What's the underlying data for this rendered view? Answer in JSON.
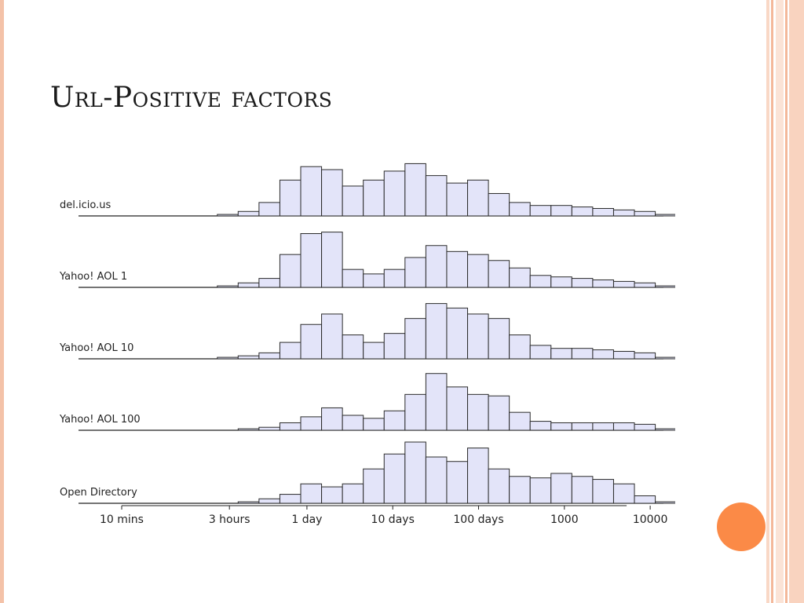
{
  "slide": {
    "title": "Url-Positive factors",
    "colors": {
      "bar_fill": "#e3e4f9",
      "bar_stroke": "#2b2b2b",
      "accent_dot": "#fb8a47",
      "border": "#f4b89a"
    }
  },
  "chart_data": {
    "type": "bar",
    "subtype": "stacked log-scale histograms",
    "title": "",
    "xlabel": "",
    "ylabel": "",
    "x_scale": "log",
    "x_unit": "minutes",
    "x_ticks": [
      {
        "label": "10 mins",
        "value": 10
      },
      {
        "label": "3 hours",
        "value": 180
      },
      {
        "label": "1 day",
        "value": 1440
      },
      {
        "label": "10 days",
        "value": 14400
      },
      {
        "label": "100 days",
        "value": 144000
      },
      {
        "label": "1000",
        "value": 1440000
      },
      {
        "label": "10000",
        "value": 14400000
      }
    ],
    "bin_start": 130,
    "bin_ratio": 1.75,
    "series": [
      {
        "name": "del.icio.us",
        "values": [
          1,
          3,
          9,
          24,
          33,
          31,
          20,
          24,
          30,
          35,
          27,
          22,
          24,
          15,
          9,
          7,
          7,
          6,
          5,
          4,
          3,
          1
        ]
      },
      {
        "name": "Yahoo! AOL 1",
        "values": [
          1,
          3,
          6,
          22,
          36,
          37,
          12,
          9,
          12,
          20,
          28,
          24,
          22,
          18,
          13,
          8,
          7,
          6,
          5,
          4,
          3,
          1
        ]
      },
      {
        "name": "Yahoo! AOL 10",
        "values": [
          1,
          2,
          4,
          11,
          23,
          30,
          16,
          11,
          17,
          27,
          37,
          34,
          30,
          27,
          16,
          9,
          7,
          7,
          6,
          5,
          4,
          1
        ]
      },
      {
        "name": "Yahoo! AOL 100",
        "values": [
          0,
          1,
          2,
          5,
          9,
          15,
          10,
          8,
          13,
          24,
          38,
          29,
          24,
          23,
          12,
          6,
          5,
          5,
          5,
          5,
          4,
          1
        ]
      },
      {
        "name": "Open Directory",
        "values": [
          0,
          1,
          3,
          6,
          13,
          11,
          13,
          23,
          33,
          41,
          31,
          28,
          37,
          23,
          18,
          17,
          20,
          18,
          16,
          13,
          5,
          1
        ]
      }
    ]
  }
}
